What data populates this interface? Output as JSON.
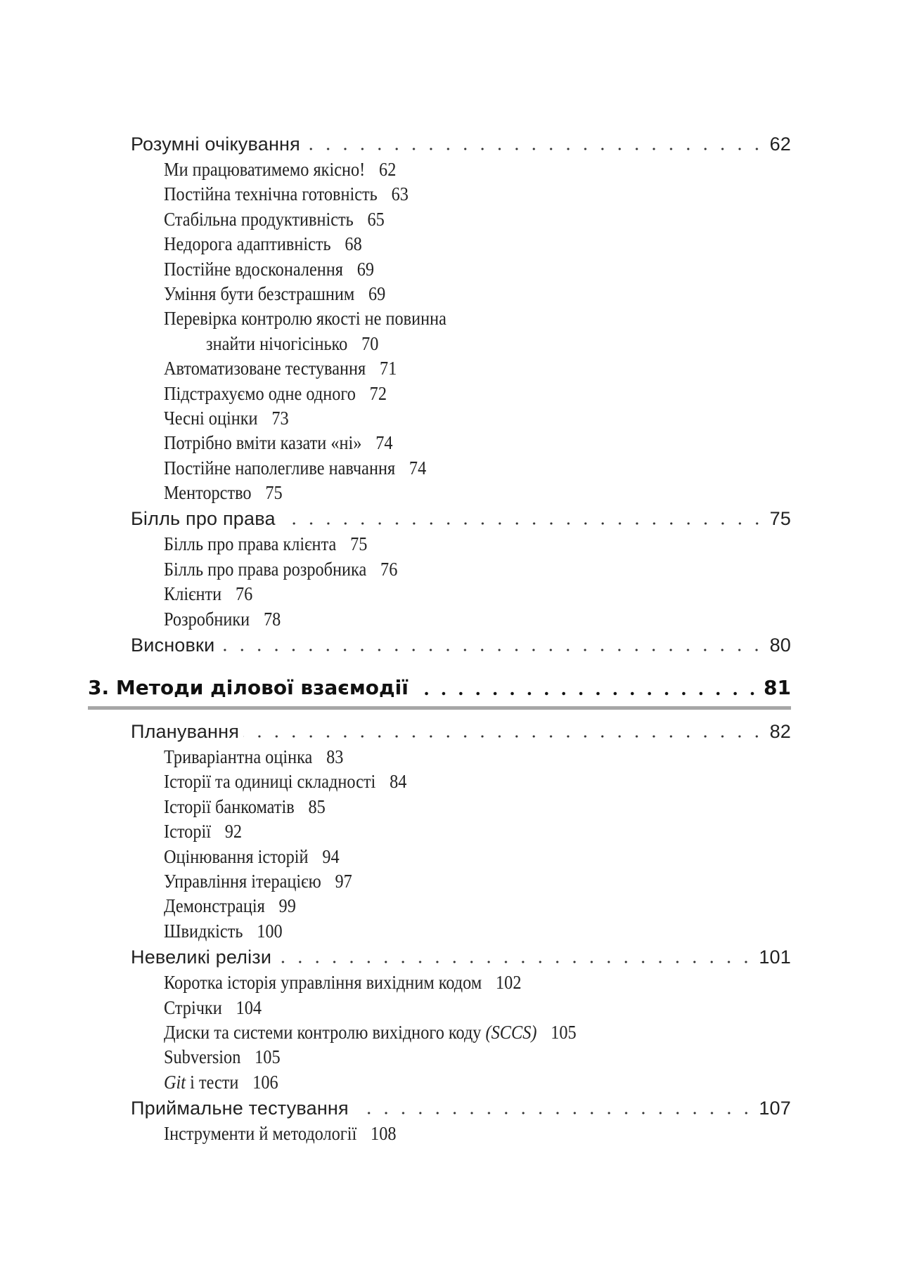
{
  "entries": [
    {
      "level": 1,
      "title": "Розумні очікування",
      "page": "62"
    },
    {
      "level": 2,
      "title": "Ми працюватимемо якісно!",
      "page": "62"
    },
    {
      "level": 2,
      "title": "Постійна технічна готовність",
      "page": "63"
    },
    {
      "level": 2,
      "title": "Стабільна продуктивність",
      "page": "65"
    },
    {
      "level": 2,
      "title": "Недорога адаптивність",
      "page": "68"
    },
    {
      "level": 2,
      "title": "Постійне вдосконалення",
      "page": "69"
    },
    {
      "level": 2,
      "title": "Уміння бути безстрашним",
      "page": "69"
    },
    {
      "level": 2,
      "title": "Перевірка контролю якості не повинна"
    },
    {
      "level": 2,
      "continuation": true,
      "title": "знайти нічогісінько",
      "page": "70"
    },
    {
      "level": 2,
      "title": "Автоматизоване тестування",
      "page": "71"
    },
    {
      "level": 2,
      "title": "Підстрахуємо одне одного",
      "page": "72"
    },
    {
      "level": 2,
      "title": "Чесні оцінки",
      "page": "73"
    },
    {
      "level": 2,
      "title": "Потрібно вміти казати «ні»",
      "page": "74"
    },
    {
      "level": 2,
      "title": "Постійне наполегливе навчання",
      "page": "74"
    },
    {
      "level": 2,
      "title": "Менторство",
      "page": "75"
    },
    {
      "level": 1,
      "title": "Білль про права",
      "page": "75"
    },
    {
      "level": 2,
      "title": "Білль про права клієнта",
      "page": "75"
    },
    {
      "level": 2,
      "title": "Білль про права розробника",
      "page": "76"
    },
    {
      "level": 2,
      "title": "Клієнти",
      "page": "76"
    },
    {
      "level": 2,
      "title": "Розробники",
      "page": "78"
    },
    {
      "level": 1,
      "title": "Висновки",
      "page": "80"
    },
    {
      "level": 0,
      "title": "3. Методи ділової взаємодії",
      "page": "81"
    },
    {
      "level": 1,
      "title": "Планування",
      "page": "82"
    },
    {
      "level": 2,
      "title": "Триваріантна оцінка",
      "page": "83"
    },
    {
      "level": 2,
      "title": "Історії та одиниці складності",
      "page": "84"
    },
    {
      "level": 2,
      "title": "Історії банкоматів",
      "page": "85"
    },
    {
      "level": 2,
      "title": "Історії",
      "page": "92"
    },
    {
      "level": 2,
      "title": "Оцінювання історій",
      "page": "94"
    },
    {
      "level": 2,
      "title": "Управління ітерацією",
      "page": "97"
    },
    {
      "level": 2,
      "title": "Демонстрація",
      "page": "99"
    },
    {
      "level": 2,
      "title": "Швидкість",
      "page": "100"
    },
    {
      "level": 1,
      "title": "Невеликі релізи",
      "page": "101"
    },
    {
      "level": 2,
      "title": "Коротка історія управління вихідним кодом",
      "page": "102"
    },
    {
      "level": 2,
      "title": "Стрічки",
      "page": "104"
    },
    {
      "level": 2,
      "title": "Диски та системи контролю вихідного коду ",
      "suffix_italic": "(SCCS)",
      "page": "105"
    },
    {
      "level": 2,
      "title": "Subversion",
      "page": "105"
    },
    {
      "level": 2,
      "prefix_italic": "Git",
      "title": " і тести",
      "page": "106"
    },
    {
      "level": 1,
      "title": "Приймальне тестування",
      "page": "107"
    },
    {
      "level": 2,
      "title": "Інструменти й методології",
      "page": "108"
    }
  ],
  "colors": {
    "text": "#1a1a1a",
    "chapter_rule": "#a6a6a6"
  }
}
